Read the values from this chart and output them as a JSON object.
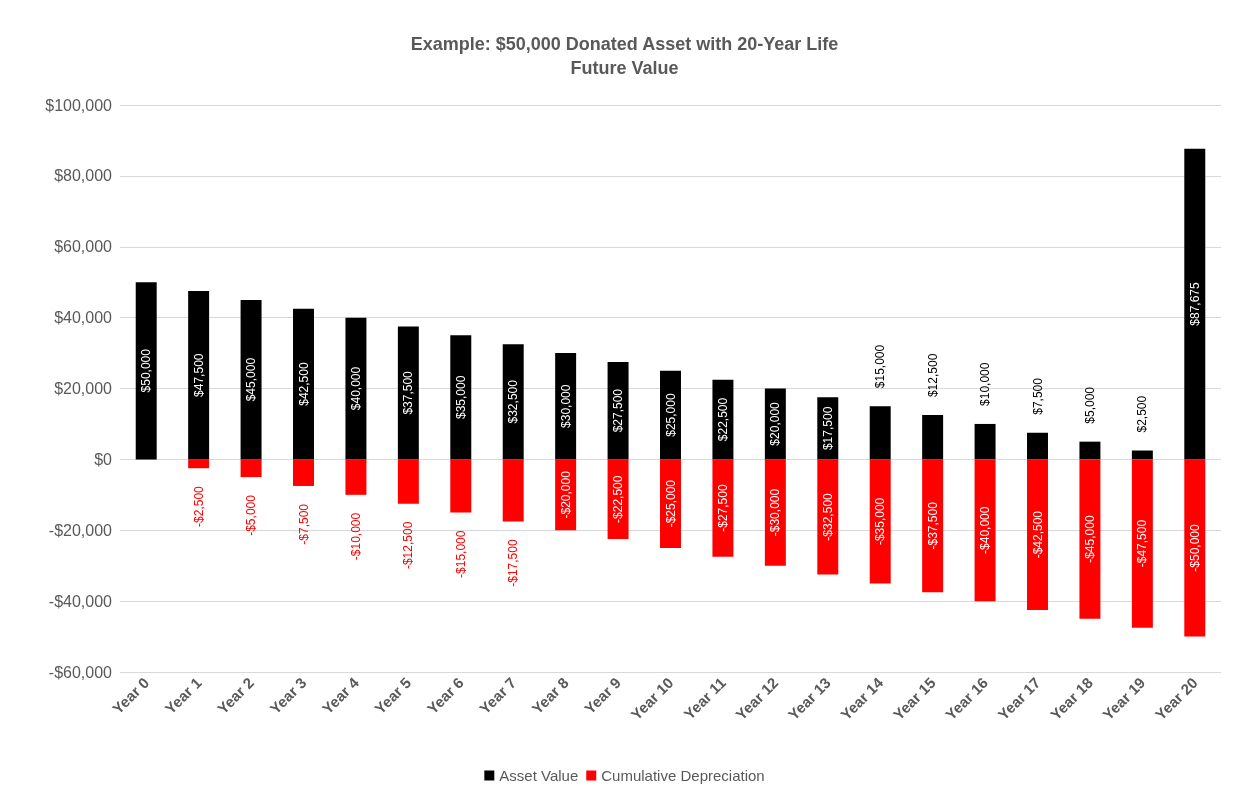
{
  "chart_data": {
    "type": "bar",
    "title": "Example: $50,000 Donated Asset with 20-Year Life",
    "subtitle": "Future Value",
    "categories": [
      "Year 0",
      "Year 1",
      "Year 2",
      "Year 3",
      "Year 4",
      "Year 5",
      "Year 6",
      "Year 7",
      "Year 8",
      "Year 9",
      "Year 10",
      "Year 11",
      "Year 12",
      "Year 13",
      "Year 14",
      "Year 15",
      "Year 16",
      "Year 17",
      "Year 18",
      "Year 19",
      "Year 20"
    ],
    "stacked": true,
    "series": [
      {
        "name": "Asset Value",
        "color": "#000000",
        "values": [
          50000,
          47500,
          45000,
          42500,
          40000,
          37500,
          35000,
          32500,
          30000,
          27500,
          25000,
          22500,
          20000,
          17500,
          15000,
          12500,
          10000,
          7500,
          5000,
          2500,
          87675
        ],
        "value_labels": [
          "$50,000",
          "$47,500",
          "$45,000",
          "$42,500",
          "$40,000",
          "$37,500",
          "$35,000",
          "$32,500",
          "$30,000",
          "$27,500",
          "$25,000",
          "$22,500",
          "$20,000",
          "$17,500",
          "$15,000",
          "$12,500",
          "$10,000",
          "$7,500",
          "$5,000",
          "$2,500",
          "$87,675"
        ]
      },
      {
        "name": "Cumulative Depreciation",
        "color": "#ff0000",
        "values": [
          null,
          -2500,
          -5000,
          -7500,
          -10000,
          -12500,
          -15000,
          -17500,
          -20000,
          -22500,
          -25000,
          -27500,
          -30000,
          -32500,
          -35000,
          -37500,
          -40000,
          -42500,
          -45000,
          -47500,
          -50000
        ],
        "value_labels": [
          null,
          "-$2,500",
          "-$5,000",
          "-$7,500",
          "-$10,000",
          "-$12,500",
          "-$15,000",
          "-$17,500",
          "-$20,000",
          "-$22,500",
          "-$25,000",
          "-$27,500",
          "-$30,000",
          "-$32,500",
          "-$35,000",
          "-$37,500",
          "-$40,000",
          "-$42,500",
          "-$45,000",
          "-$47,500",
          "-$50,000"
        ]
      }
    ],
    "ylim": [
      -60000,
      100000
    ],
    "yticks": [
      {
        "value": -60000,
        "label": "-$60,000"
      },
      {
        "value": -40000,
        "label": "-$40,000"
      },
      {
        "value": -20000,
        "label": "-$20,000"
      },
      {
        "value": 0,
        "label": "$0"
      },
      {
        "value": 20000,
        "label": "$20,000"
      },
      {
        "value": 40000,
        "label": "$40,000"
      },
      {
        "value": 60000,
        "label": "$60,000"
      },
      {
        "value": 80000,
        "label": "$80,000"
      },
      {
        "value": 100000,
        "label": "$100,000"
      }
    ],
    "grid": "y",
    "legend": "bottom"
  }
}
